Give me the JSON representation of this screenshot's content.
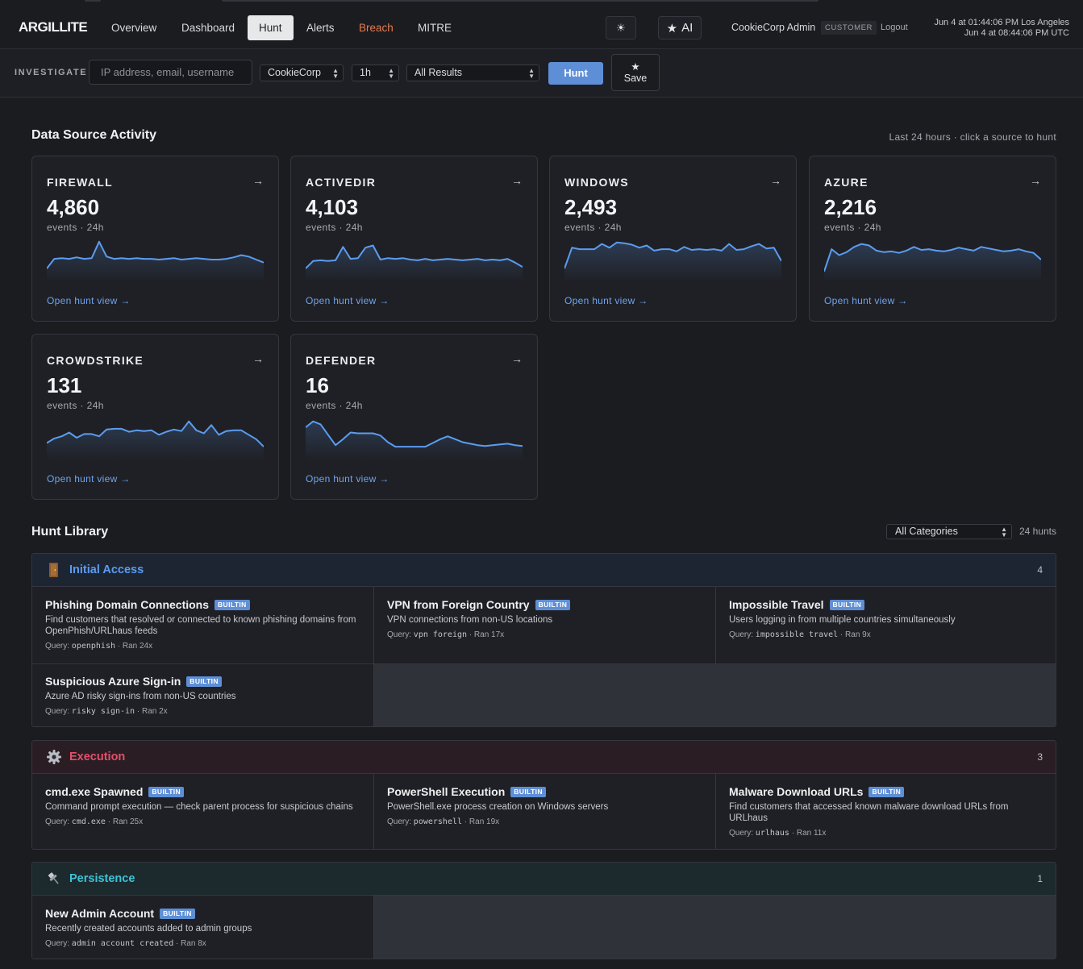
{
  "brand": "ARGILLITE",
  "nav": [
    "Overview",
    "Dashboard",
    "Hunt",
    "Alerts",
    "Breach",
    "MITRE"
  ],
  "nav_active": "Hunt",
  "theme_toggle": "☀",
  "ai_label": "AI",
  "user": {
    "name": "CookieCorp Admin",
    "role": "CUSTOMER",
    "logout": "Logout"
  },
  "clock": {
    "local": "Jun 4 at 01:44:06 PM Los Angeles",
    "utc": "Jun 4 at 08:44:06 PM UTC"
  },
  "investigate": {
    "label": "INVESTIGATE",
    "placeholder": "IP address, email, username",
    "org": "CookieCorp",
    "range": "1h",
    "results": "All Results",
    "hunt_btn": "Hunt",
    "save_btn": "Save"
  },
  "activity": {
    "title": "Data Source Activity",
    "subtitle": "Last 24 hours · click a source to hunt",
    "sources": [
      {
        "name": "FIREWALL",
        "count": "4,860",
        "sub": "events · 24h",
        "link": "Open hunt view →",
        "spark": [
          14,
          27,
          28,
          27,
          29,
          27,
          28,
          50,
          30,
          27,
          28,
          27,
          28,
          27,
          27,
          26,
          27,
          28,
          26,
          27,
          28,
          27,
          26,
          26,
          27,
          29,
          32,
          30,
          26,
          22
        ]
      },
      {
        "name": "ACTIVEDIR",
        "count": "4,103",
        "sub": "events · 24h",
        "link": "Open hunt view →",
        "spark": [
          14,
          24,
          25,
          24,
          25,
          43,
          27,
          28,
          42,
          45,
          26,
          28,
          27,
          28,
          26,
          25,
          27,
          25,
          26,
          27,
          26,
          25,
          26,
          27,
          25,
          26,
          25,
          27,
          22,
          16
        ]
      },
      {
        "name": "WINDOWS",
        "count": "2,493",
        "sub": "events · 24h",
        "link": "Open hunt view →",
        "spark": [
          14,
          42,
          40,
          40,
          40,
          47,
          42,
          49,
          48,
          46,
          42,
          45,
          38,
          40,
          40,
          37,
          43,
          39,
          40,
          39,
          40,
          38,
          47,
          39,
          40,
          44,
          47,
          41,
          42,
          24
        ]
      },
      {
        "name": "AZURE",
        "count": "2,216",
        "sub": "events · 24h",
        "link": "Open hunt view →",
        "spark": [
          10,
          40,
          32,
          36,
          43,
          47,
          45,
          38,
          36,
          37,
          35,
          38,
          43,
          39,
          40,
          38,
          37,
          39,
          42,
          40,
          38,
          43,
          41,
          39,
          37,
          38,
          40,
          37,
          35,
          26
        ]
      },
      {
        "name": "CROWDSTRIKE",
        "count": "131",
        "sub": "events · 24h",
        "link": "Open hunt view →",
        "spark": [
          19,
          25,
          28,
          33,
          26,
          31,
          31,
          28,
          37,
          38,
          38,
          34,
          36,
          35,
          36,
          30,
          34,
          37,
          35,
          48,
          36,
          32,
          43,
          30,
          35,
          36,
          36,
          30,
          24,
          14
        ]
      },
      {
        "name": "DEFENDER",
        "count": "16",
        "sub": "events · 24h",
        "link": "Open hunt view →",
        "spark": [
          40,
          48,
          44,
          30,
          16,
          24,
          33,
          32,
          32,
          32,
          29,
          20,
          14,
          14,
          14,
          14,
          14,
          19,
          24,
          28,
          24,
          20,
          18,
          16,
          15,
          16,
          17,
          18,
          16,
          15
        ]
      }
    ]
  },
  "library": {
    "title": "Hunt Library",
    "filter": "All Categories",
    "count": "24 hunts",
    "badge": "BUILTIN",
    "query_prefix": "Query:",
    "groups": [
      {
        "name": "Initial Access",
        "count": "4",
        "color": "#5b9cf0",
        "icon": "door-icon",
        "hunts": [
          {
            "title": "Phishing Domain Connections",
            "desc": "Find customers that resolved or connected to known phishing domains from OpenPhish/URLhaus feeds",
            "query": "openphish",
            "ran": "Ran 24x"
          },
          {
            "title": "VPN from Foreign Country",
            "desc": "VPN connections from non-US locations",
            "query": "vpn foreign",
            "ran": "Ran 17x"
          },
          {
            "title": "Impossible Travel",
            "desc": "Users logging in from multiple countries simultaneously",
            "query": "impossible travel",
            "ran": "Ran 9x"
          },
          {
            "title": "Suspicious Azure Sign-in",
            "desc": "Azure AD risky sign-ins from non-US countries",
            "query": "risky sign-in",
            "ran": "Ran 2x"
          }
        ]
      },
      {
        "name": "Execution",
        "count": "3",
        "color": "#e64f6a",
        "icon": "gear-icon",
        "hunts": [
          {
            "title": "cmd.exe Spawned",
            "desc": "Command prompt execution — check parent process for suspicious chains",
            "query": "cmd.exe",
            "ran": "Ran 25x"
          },
          {
            "title": "PowerShell Execution",
            "desc": "PowerShell.exe process creation on Windows servers",
            "query": "powershell",
            "ran": "Ran 19x"
          },
          {
            "title": "Malware Download URLs",
            "desc": "Find customers that accessed known malware download URLs from URLhaus",
            "query": "urlhaus",
            "ran": "Ran 11x"
          }
        ]
      },
      {
        "name": "Persistence",
        "count": "1",
        "color": "#3ec2d6",
        "icon": "pin-icon",
        "hunts": [
          {
            "title": "New Admin Account",
            "desc": "Recently created accounts added to admin groups",
            "query": "admin account created",
            "ran": "Ran 8x"
          }
        ]
      }
    ]
  }
}
